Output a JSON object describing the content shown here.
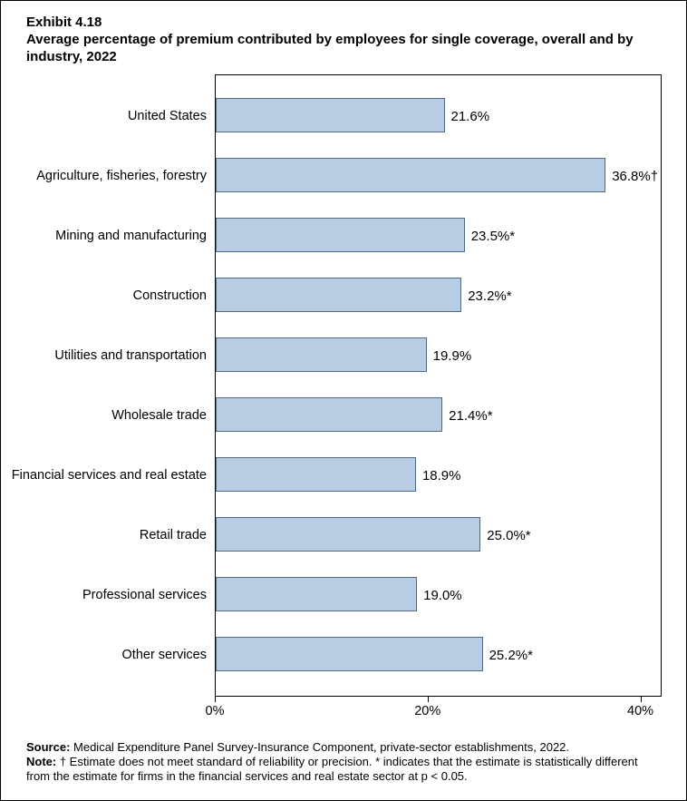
{
  "header": {
    "exhibit": "Exhibit 4.18",
    "title": "Average percentage of premium contributed by employees for single coverage, overall and by industry, 2022"
  },
  "chart_data": {
    "type": "bar",
    "orientation": "horizontal",
    "title": "Average percentage of premium contributed by employees for single coverage, overall and by industry, 2022",
    "categories": [
      "United States",
      "Agriculture, fisheries, forestry",
      "Mining and manufacturing",
      "Construction",
      "Utilities and transportation",
      "Wholesale trade",
      "Financial services and real estate",
      "Retail trade",
      "Professional services",
      "Other services"
    ],
    "values": [
      21.6,
      36.8,
      23.5,
      23.2,
      19.9,
      21.4,
      18.9,
      25.0,
      19.0,
      25.2
    ],
    "value_labels": [
      "21.6%",
      "36.8%†",
      "23.5%*",
      "23.2%*",
      "19.9%",
      "21.4%*",
      "18.9%",
      "25.0%*",
      "19.0%",
      "25.2%*"
    ],
    "xlabel": "",
    "ylabel": "",
    "xlim": [
      0,
      42
    ],
    "xticks": [
      {
        "value": 0,
        "label": "0%"
      },
      {
        "value": 20,
        "label": "20%"
      },
      {
        "value": 40,
        "label": "40%"
      }
    ],
    "grid": false,
    "legend": false,
    "bar_fill": "#b8cce4",
    "bar_border": "#4f6984"
  },
  "footer": {
    "source_label": "Source:",
    "source_text": " Medical Expenditure Panel Survey-Insurance Component, private-sector establishments, 2022.",
    "note_label": "Note:",
    "note_text": " † Estimate does not meet standard of reliability or precision. * indicates that the estimate is statistically different from the estimate for firms in the financial services and real estate sector at p < 0.05."
  }
}
